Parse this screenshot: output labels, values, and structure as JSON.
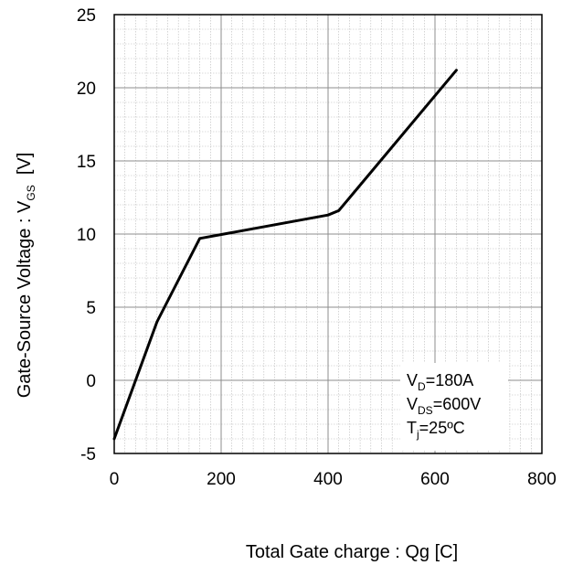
{
  "chart_data": {
    "type": "line",
    "xlabel": "Total Gate charge : Qg  [C]",
    "ylabel": "Gate-Source Voltage : V",
    "ylabel_sub": "GS",
    "ylabel_unit": "  [V]",
    "xlim": [
      0,
      800
    ],
    "ylim": [
      -5,
      25
    ],
    "x_ticks": [
      0,
      200,
      400,
      600,
      800
    ],
    "y_ticks": [
      -5,
      0,
      5,
      10,
      15,
      20,
      25
    ],
    "grid": true,
    "series": [
      {
        "x": [
          0,
          80,
          160,
          400,
          420,
          640
        ],
        "y": [
          -4,
          4,
          9.7,
          11.3,
          11.6,
          21.2
        ],
        "color": "#000000"
      }
    ],
    "annotations": [
      {
        "main": "V",
        "sub": "D",
        "rest": "=180A"
      },
      {
        "main": "V",
        "sub": "DS",
        "rest": "=600V"
      },
      {
        "main": "T",
        "sub": "j",
        "rest": "=25ºC"
      }
    ]
  }
}
